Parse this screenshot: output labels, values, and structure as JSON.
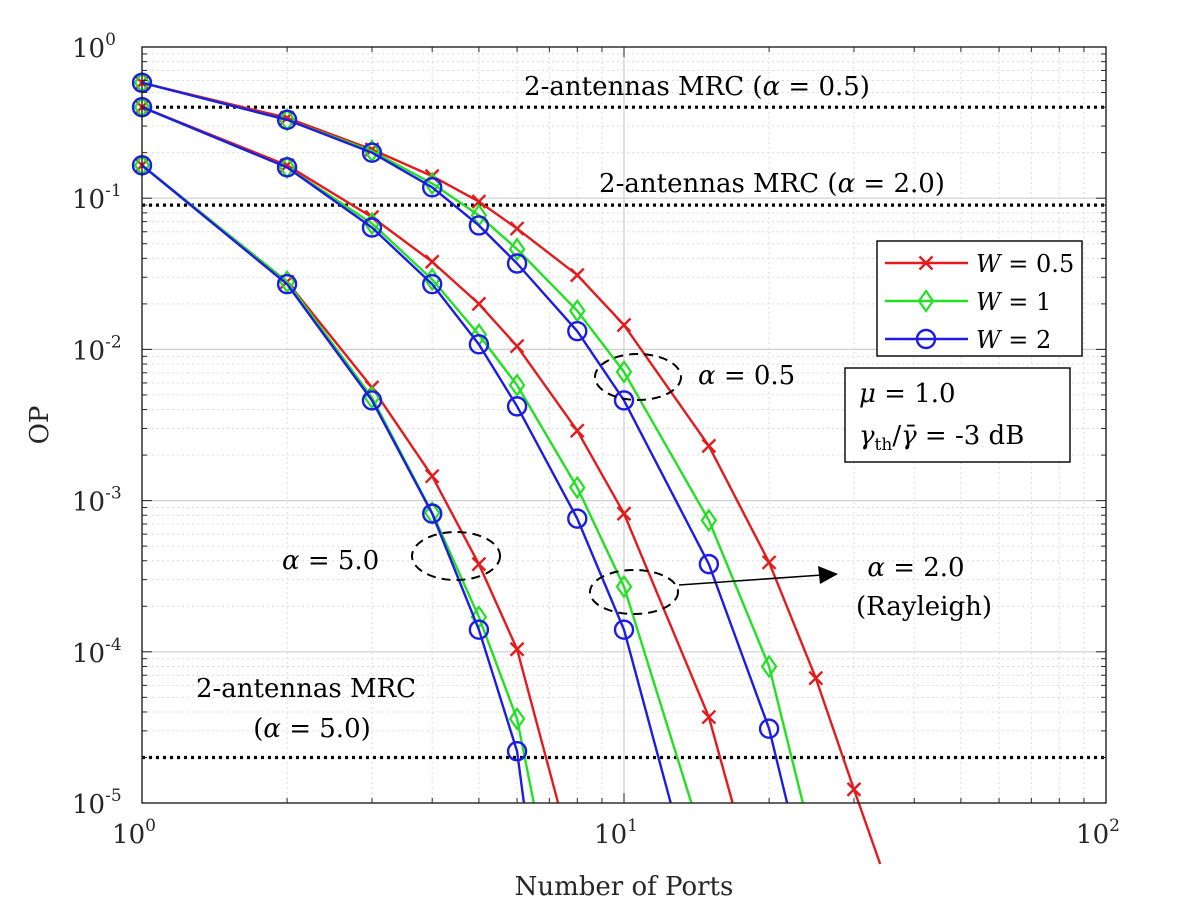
{
  "chart_data": {
    "type": "line",
    "xlabel": "Number of Ports",
    "ylabel": "OP",
    "xscale": "log",
    "yscale": "log",
    "xlim": [
      1,
      100
    ],
    "ylim": [
      1e-05,
      1
    ],
    "grid": true,
    "minor_grid": true,
    "legend_position": "right",
    "x_ticks": [
      {
        "base": "10",
        "exp": "0"
      },
      {
        "base": "10",
        "exp": "1"
      },
      {
        "base": "10",
        "exp": "2"
      }
    ],
    "y_ticks": [
      {
        "base": "10",
        "exp": "0"
      },
      {
        "base": "10",
        "exp": "-1"
      },
      {
        "base": "10",
        "exp": "-2"
      },
      {
        "base": "10",
        "exp": "-3"
      },
      {
        "base": "10",
        "exp": "-4"
      },
      {
        "base": "10",
        "exp": "-5"
      }
    ],
    "x_marker_positions": [
      1,
      2,
      3,
      4,
      5,
      6,
      8,
      10,
      15,
      20,
      25,
      30
    ],
    "series": [
      {
        "name": "W = 0.5",
        "group": "alpha = 0.5",
        "color": "#e41a1c",
        "marker": "x",
        "x": [
          1,
          2,
          3,
          4,
          5,
          6,
          8,
          10,
          15,
          20,
          25,
          30,
          34
        ],
        "y": [
          0.58,
          0.34,
          0.21,
          0.14,
          0.095,
          0.063,
          0.031,
          0.0145,
          0.0023,
          0.00039,
          6.7e-05,
          1.23e-05,
          3.95e-06
        ]
      },
      {
        "name": "W = 1",
        "group": "alpha = 0.5",
        "color": "#22e022",
        "marker": "diamond",
        "x": [
          1,
          2,
          3,
          4,
          5,
          6,
          8,
          10,
          15,
          20,
          23.5
        ],
        "y": [
          0.58,
          0.33,
          0.205,
          0.125,
          0.077,
          0.046,
          0.018,
          0.0071,
          0.00074,
          8e-05,
          1e-05
        ]
      },
      {
        "name": "W = 2",
        "group": "alpha = 0.5",
        "color": "#1c1ce6",
        "marker": "circle",
        "x": [
          1,
          2,
          3,
          4,
          5,
          6,
          8,
          10,
          15,
          20,
          21.8
        ],
        "y": [
          0.58,
          0.33,
          0.2,
          0.118,
          0.066,
          0.037,
          0.0132,
          0.0046,
          0.00038,
          3.1e-05,
          1e-05
        ]
      },
      {
        "name": "W = 0.5",
        "group": "alpha = 2.0",
        "color": "#e41a1c",
        "marker": "x",
        "x": [
          1,
          2,
          3,
          4,
          5,
          6,
          8,
          10,
          15,
          16.8
        ],
        "y": [
          0.4,
          0.165,
          0.075,
          0.038,
          0.02,
          0.0105,
          0.0029,
          0.00082,
          3.7e-05,
          1e-05
        ]
      },
      {
        "name": "W = 1",
        "group": "alpha = 2.0",
        "color": "#22e022",
        "marker": "diamond",
        "x": [
          1,
          2,
          3,
          4,
          5,
          6,
          8,
          10,
          13.8
        ],
        "y": [
          0.4,
          0.16,
          0.068,
          0.029,
          0.0125,
          0.0058,
          0.00122,
          0.00027,
          1e-05
        ]
      },
      {
        "name": "W = 2",
        "group": "alpha = 2.0",
        "color": "#1c1ce6",
        "marker": "circle",
        "x": [
          1,
          2,
          3,
          4,
          5,
          6,
          8,
          10,
          12.5
        ],
        "y": [
          0.4,
          0.16,
          0.064,
          0.027,
          0.0108,
          0.0042,
          0.00076,
          0.00014,
          1e-05
        ]
      },
      {
        "name": "W = 0.5",
        "group": "alpha = 5.0",
        "color": "#e41a1c",
        "marker": "x",
        "x": [
          1,
          2,
          3,
          4,
          5,
          6,
          7.3
        ],
        "y": [
          0.165,
          0.028,
          0.0056,
          0.00145,
          0.00038,
          0.000104,
          1e-05
        ]
      },
      {
        "name": "W = 1",
        "group": "alpha = 5.0",
        "color": "#22e022",
        "marker": "diamond",
        "x": [
          1,
          2,
          3,
          4,
          5,
          6,
          6.5
        ],
        "y": [
          0.165,
          0.028,
          0.0048,
          0.00083,
          0.00017,
          3.6e-05,
          1e-05
        ]
      },
      {
        "name": "W = 2",
        "group": "alpha = 5.0",
        "color": "#1c1ce6",
        "marker": "circle",
        "x": [
          1,
          2,
          3,
          4,
          5,
          6,
          6.2
        ],
        "y": [
          0.165,
          0.027,
          0.0046,
          0.00082,
          0.00014,
          2.2e-05,
          1e-05
        ]
      }
    ],
    "reference_lines": [
      {
        "y": 0.4,
        "label_text": "2-antennas MRC (",
        "label_greek": "α",
        "label_rest": " = 0.5)"
      },
      {
        "y": 0.09,
        "label_text": "2-antennas MRC (",
        "label_greek": "α",
        "label_rest": " = 2.0)"
      },
      {
        "y": 2e-05,
        "label_line1": "2-antennas MRC",
        "label_line2_open": "(",
        "label_greek": "α",
        "label_line2_rest": " = 5.0)"
      }
    ],
    "annotations": {
      "alpha05": {
        "greek": "α",
        "rest": " = 0.5"
      },
      "alpha20": {
        "greek": "α",
        "rest": " = 2.0",
        "line2": "(Rayleigh)"
      },
      "alpha50": {
        "greek": "α",
        "rest": " = 5.0"
      },
      "params": {
        "mu_greek": "μ",
        "mu_rest": " = 1.0",
        "gamma_greek": "γ",
        "gamma_sub": "th",
        "gamma_slash": "/",
        "gamma_bar": "γ̄",
        "gamma_rest": " = -3 dB"
      }
    },
    "legend": [
      {
        "var": "W",
        "rest": " = 0.5",
        "color": "#e41a1c",
        "marker": "x"
      },
      {
        "var": "W",
        "rest": " = 1",
        "color": "#22e022",
        "marker": "diamond"
      },
      {
        "var": "W",
        "rest": " = 2",
        "color": "#1c1ce6",
        "marker": "circle"
      }
    ]
  }
}
